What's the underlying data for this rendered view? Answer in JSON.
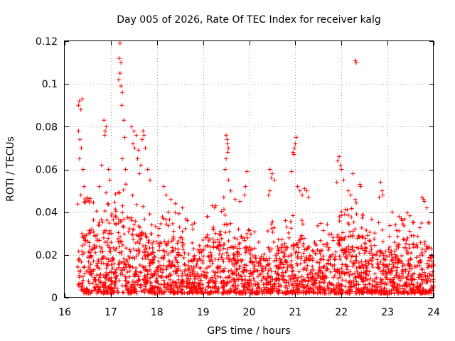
{
  "chart_data": {
    "type": "scatter",
    "title": "Day 005 of 2026, Rate Of TEC Index for receiver kalg",
    "xlabel": "GPS time / hours",
    "ylabel": "ROTI / TECUs",
    "xlim": [
      16,
      24
    ],
    "ylim": [
      0,
      0.12
    ],
    "x_ticks": [
      16,
      17,
      18,
      19,
      20,
      21,
      22,
      23,
      24
    ],
    "x_tick_labels": [
      "16",
      "17",
      "18",
      "19",
      "20",
      "21",
      "22",
      "23",
      "24"
    ],
    "y_ticks": [
      0,
      0.02,
      0.04,
      0.06,
      0.08,
      0.1,
      0.12
    ],
    "y_tick_labels": [
      "0",
      "0.02",
      "0.04",
      "0.06",
      "0.08",
      "0.1",
      "0.12"
    ],
    "grid": true,
    "marker": "+",
    "colors": {
      "series": "#ff0000",
      "grid": "#a0a0a0",
      "axis": "#000000"
    },
    "series": [
      {
        "name": "ROTI",
        "points": [
          [
            16.3,
            0.09
          ],
          [
            16.32,
            0.092
          ],
          [
            16.35,
            0.088
          ],
          [
            16.38,
            0.093
          ],
          [
            16.3,
            0.078
          ],
          [
            16.33,
            0.074
          ],
          [
            16.36,
            0.07
          ],
          [
            16.32,
            0.065
          ],
          [
            16.4,
            0.06
          ],
          [
            16.42,
            0.052
          ],
          [
            16.35,
            0.048
          ],
          [
            16.45,
            0.045
          ],
          [
            16.85,
            0.083
          ],
          [
            16.88,
            0.078
          ],
          [
            16.9,
            0.08
          ],
          [
            16.87,
            0.076
          ],
          [
            16.8,
            0.062
          ],
          [
            16.95,
            0.06
          ],
          [
            16.98,
            0.055
          ],
          [
            16.75,
            0.052
          ],
          [
            17.2,
            0.119
          ],
          [
            17.18,
            0.112
          ],
          [
            17.22,
            0.11
          ],
          [
            17.2,
            0.105
          ],
          [
            17.17,
            0.102
          ],
          [
            17.22,
            0.099
          ],
          [
            17.25,
            0.096
          ],
          [
            17.24,
            0.09
          ],
          [
            17.28,
            0.083
          ],
          [
            17.3,
            0.075
          ],
          [
            17.25,
            0.065
          ],
          [
            17.32,
            0.06
          ],
          [
            17.45,
            0.08
          ],
          [
            17.5,
            0.078
          ],
          [
            17.55,
            0.076
          ],
          [
            17.48,
            0.072
          ],
          [
            17.52,
            0.07
          ],
          [
            17.6,
            0.069
          ],
          [
            17.7,
            0.078
          ],
          [
            17.72,
            0.076
          ],
          [
            17.68,
            0.074
          ],
          [
            17.75,
            0.07
          ],
          [
            17.58,
            0.065
          ],
          [
            17.65,
            0.062
          ],
          [
            17.8,
            0.06
          ],
          [
            17.85,
            0.055
          ],
          [
            17.62,
            0.058
          ],
          [
            18.15,
            0.052
          ],
          [
            18.2,
            0.048
          ],
          [
            18.3,
            0.046
          ],
          [
            18.4,
            0.044
          ],
          [
            18.55,
            0.042
          ],
          [
            18.25,
            0.04
          ],
          [
            19.2,
            0.043
          ],
          [
            19.25,
            0.042
          ],
          [
            19.1,
            0.038
          ],
          [
            19.5,
            0.076
          ],
          [
            19.52,
            0.074
          ],
          [
            19.53,
            0.072
          ],
          [
            19.55,
            0.07
          ],
          [
            19.54,
            0.068
          ],
          [
            19.5,
            0.065
          ],
          [
            19.48,
            0.06
          ],
          [
            19.55,
            0.055
          ],
          [
            19.6,
            0.05
          ],
          [
            19.45,
            0.047
          ],
          [
            19.7,
            0.046
          ],
          [
            19.8,
            0.045
          ],
          [
            19.9,
            0.048
          ],
          [
            19.95,
            0.059
          ],
          [
            19.92,
            0.052
          ],
          [
            20.45,
            0.06
          ],
          [
            20.5,
            0.058
          ],
          [
            20.48,
            0.056
          ],
          [
            20.55,
            0.055
          ],
          [
            20.45,
            0.05
          ],
          [
            20.42,
            0.048
          ],
          [
            20.95,
            0.068
          ],
          [
            20.98,
            0.07
          ],
          [
            21.0,
            0.072
          ],
          [
            21.02,
            0.075
          ],
          [
            20.97,
            0.067
          ],
          [
            20.92,
            0.059
          ],
          [
            21.05,
            0.052
          ],
          [
            21.1,
            0.05
          ],
          [
            21.15,
            0.048
          ],
          [
            21.2,
            0.051
          ],
          [
            21.25,
            0.05
          ],
          [
            21.28,
            0.047
          ],
          [
            21.92,
            0.064
          ],
          [
            21.95,
            0.066
          ],
          [
            21.98,
            0.062
          ],
          [
            22.0,
            0.06
          ],
          [
            22.05,
            0.055
          ],
          [
            21.9,
            0.054
          ],
          [
            22.15,
            0.05
          ],
          [
            22.2,
            0.048
          ],
          [
            22.25,
            0.058
          ],
          [
            22.3,
            0.111
          ],
          [
            22.32,
            0.11
          ],
          [
            22.4,
            0.053
          ],
          [
            22.42,
            0.052
          ],
          [
            22.85,
            0.054
          ],
          [
            22.88,
            0.05
          ],
          [
            22.9,
            0.048
          ],
          [
            22.82,
            0.047
          ],
          [
            23.1,
            0.04
          ],
          [
            23.25,
            0.038
          ],
          [
            23.3,
            0.037
          ],
          [
            23.75,
            0.047
          ],
          [
            23.78,
            0.046
          ],
          [
            23.8,
            0.045
          ],
          [
            23.85,
            0.042
          ],
          [
            23.9,
            0.035
          ],
          [
            23.95,
            0.02
          ],
          [
            24.0,
            0.015
          ]
        ]
      }
    ],
    "noise_cloud": {
      "description": "dense band of points between 0.002 and ~0.035 TECU/min across the whole time range",
      "x_range": [
        16.28,
        24.0
      ],
      "y_floor": 0.002,
      "typical_top_by_hour": [
        [
          16.3,
          0.038
        ],
        [
          16.6,
          0.034
        ],
        [
          17.0,
          0.04
        ],
        [
          17.3,
          0.042
        ],
        [
          17.6,
          0.036
        ],
        [
          18.0,
          0.026
        ],
        [
          18.4,
          0.03
        ],
        [
          18.8,
          0.024
        ],
        [
          19.2,
          0.032
        ],
        [
          19.5,
          0.036
        ],
        [
          19.8,
          0.03
        ],
        [
          20.2,
          0.018
        ],
        [
          20.5,
          0.024
        ],
        [
          20.9,
          0.026
        ],
        [
          21.2,
          0.03
        ],
        [
          21.5,
          0.022
        ],
        [
          21.8,
          0.028
        ],
        [
          22.0,
          0.032
        ],
        [
          22.3,
          0.034
        ],
        [
          22.6,
          0.026
        ],
        [
          23.0,
          0.024
        ],
        [
          23.3,
          0.028
        ],
        [
          23.6,
          0.03
        ],
        [
          24.0,
          0.022
        ]
      ],
      "count": 2600,
      "seed": 5
    }
  }
}
